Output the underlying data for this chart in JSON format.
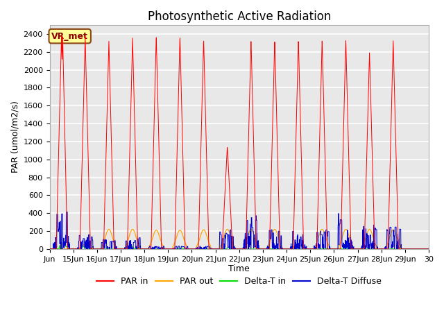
{
  "title": "Photosynthetic Active Radiation",
  "ylabel": "PAR (umol/m2/s)",
  "xlabel": "Time",
  "annotation": "VR_met",
  "ylim": [
    0,
    2500
  ],
  "xlim": [
    0,
    16
  ],
  "xtick_labels": [
    "Jun",
    "15Jun",
    "16Jun",
    "17Jun",
    "18Jun",
    "19Jun",
    "20Jun",
    "21Jun",
    "22Jun",
    "23Jun",
    "24Jun",
    "25Jun",
    "26Jun",
    "27Jun",
    "28Jun",
    "29Jun",
    "30"
  ],
  "legend_labels": [
    "PAR in",
    "PAR out",
    "Delta-T in",
    "Delta-T Diffuse"
  ],
  "colors": {
    "PAR_in": "#ff0000",
    "PAR_out": "#ffa500",
    "DeltaT_in": "#00dd00",
    "DeltaT_Diffuse": "#0000cc"
  },
  "background_color": "#e8e8e8",
  "grid_color": "#ffffff",
  "title_fontsize": 12,
  "label_fontsize": 9,
  "tick_fontsize": 8
}
